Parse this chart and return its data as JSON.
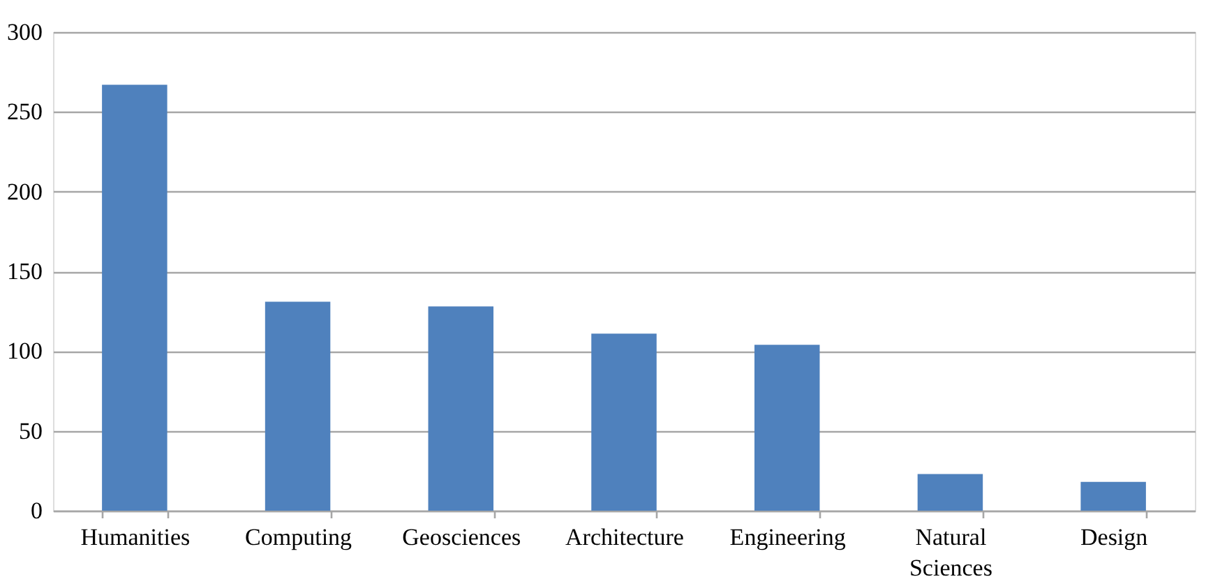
{
  "chart_data": {
    "type": "bar",
    "categories": [
      "Humanities",
      "Computing",
      "Geosciences",
      "Architecture",
      "Engineering",
      "Natural Sciences",
      "Design"
    ],
    "values": [
      267,
      131,
      128,
      111,
      104,
      23,
      18
    ],
    "color": "#4f81bd",
    "ylim": [
      0,
      300
    ],
    "yticks": [
      0,
      50,
      100,
      150,
      200,
      250,
      300
    ],
    "grid": "y"
  }
}
